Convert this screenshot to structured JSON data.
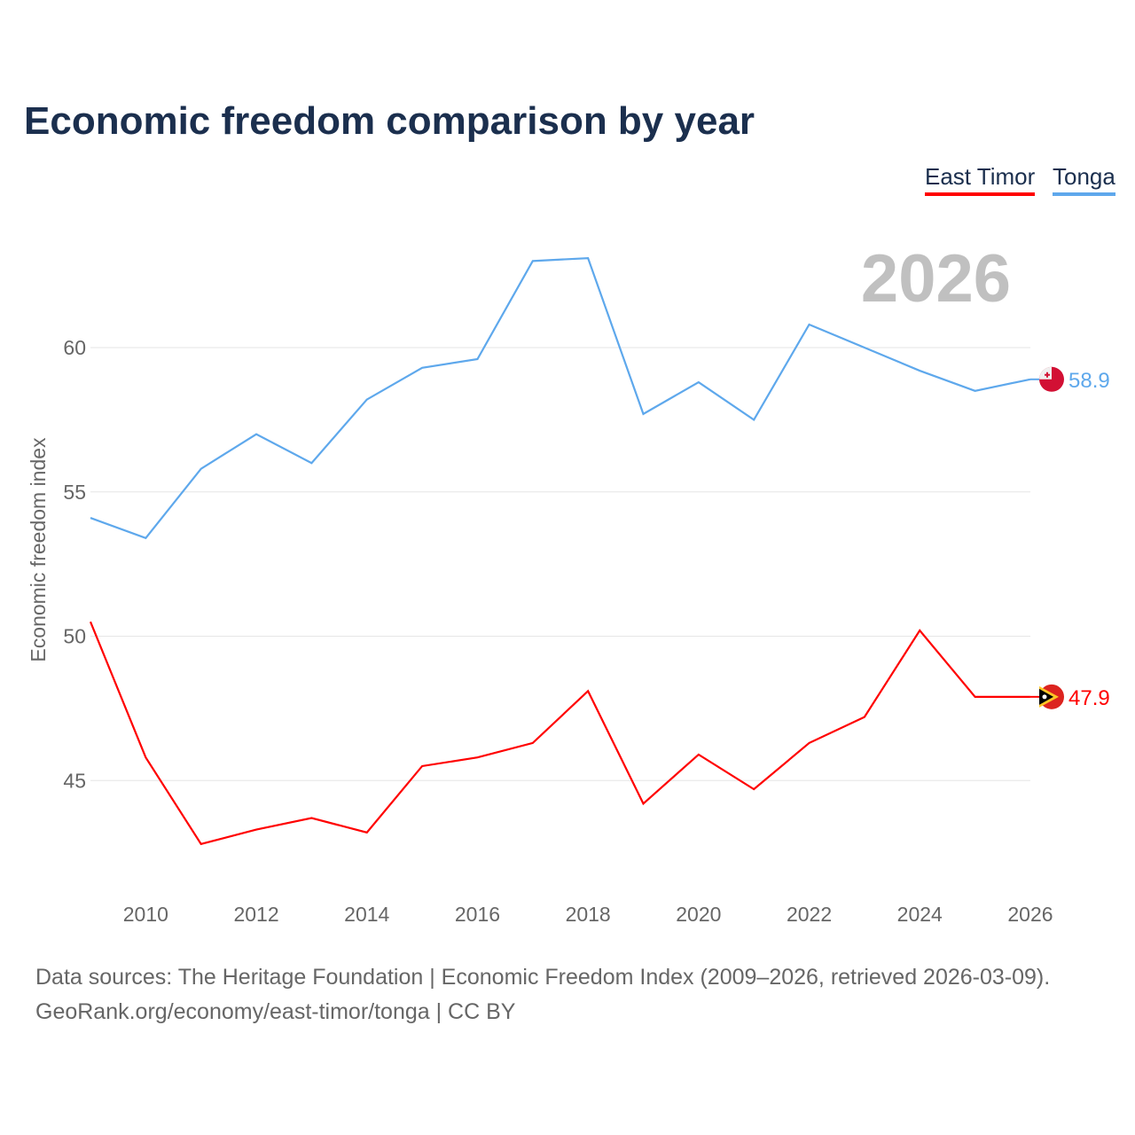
{
  "chart_data": {
    "type": "line",
    "title": "Economic freedom comparison by year",
    "ylabel": "Economic freedom index",
    "xlabel": "",
    "x": [
      2009,
      2010,
      2011,
      2012,
      2013,
      2014,
      2015,
      2016,
      2017,
      2018,
      2019,
      2020,
      2021,
      2022,
      2023,
      2024,
      2025,
      2026
    ],
    "xticks": [
      "2010",
      "2012",
      "2014",
      "2016",
      "2018",
      "2020",
      "2022",
      "2024",
      "2026"
    ],
    "yticks": [
      "45",
      "50",
      "55",
      "60"
    ],
    "ylim": [
      41,
      64
    ],
    "grid": true,
    "legend_placement": "top-right",
    "current_year_label": "2026",
    "series": [
      {
        "name": "East Timor",
        "color": "#ff0000",
        "end_label": "47.9",
        "values": [
          50.5,
          45.8,
          42.8,
          43.3,
          43.7,
          43.2,
          45.5,
          45.8,
          46.3,
          48.1,
          44.2,
          45.9,
          44.7,
          46.3,
          47.2,
          50.2,
          47.9,
          47.9
        ]
      },
      {
        "name": "Tonga",
        "color": "#5ea8ec",
        "end_label": "58.9",
        "values": [
          54.1,
          53.4,
          55.8,
          57.0,
          56.0,
          58.2,
          59.3,
          59.6,
          63.0,
          63.1,
          57.7,
          58.8,
          57.5,
          60.8,
          60.0,
          59.2,
          58.5,
          58.9
        ]
      }
    ]
  },
  "footer": {
    "line1": "Data sources: The Heritage Foundation | Economic Freedom Index (2009–2026, retrieved 2026-03-09).",
    "line2": "GeoRank.org/economy/east-timor/tonga | CC BY"
  }
}
